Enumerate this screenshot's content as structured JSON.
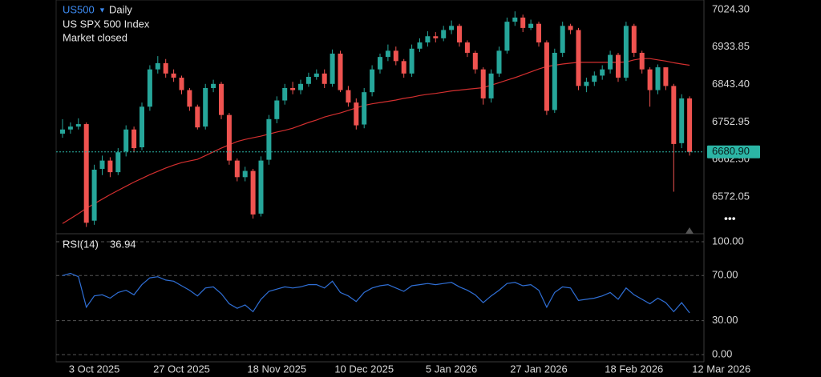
{
  "chart_data": {
    "type": "candlestick",
    "symbol": "US500",
    "interval": "Daily",
    "name": "US SPX 500 Index",
    "status": "Market closed",
    "categories": [
      null,
      null,
      null,
      null,
      "3 Oct 2025",
      null,
      null,
      null,
      null,
      null,
      null,
      null,
      null,
      null,
      null,
      "27 Oct 2025",
      null,
      null,
      null,
      null,
      null,
      null,
      null,
      null,
      null,
      null,
      null,
      "18 Nov 2025",
      null,
      null,
      null,
      null,
      null,
      null,
      null,
      null,
      null,
      null,
      "10 Dec 2025",
      null,
      null,
      null,
      null,
      null,
      null,
      null,
      null,
      null,
      null,
      "5 Jan 2026",
      null,
      null,
      null,
      null,
      null,
      null,
      null,
      null,
      null,
      null,
      "27 Jan 2026",
      null,
      null,
      null,
      null,
      null,
      null,
      null,
      null,
      null,
      null,
      null,
      "18 Feb 2026",
      null,
      null,
      null,
      null,
      null,
      null,
      null,
      null,
      null,
      null,
      "12 Mar 2026"
    ],
    "open": [
      6725,
      6735,
      6742,
      6748,
      6515,
      6640,
      6660,
      6632,
      6682,
      6735,
      6692,
      6790,
      6880,
      6895,
      6870,
      6860,
      6830,
      6790,
      6742,
      6835,
      6845,
      6770,
      6660,
      6620,
      6635,
      6532,
      6662,
      6760,
      6805,
      6835,
      6830,
      6845,
      6862,
      6870,
      6845,
      6918,
      6830,
      6800,
      6747,
      6825,
      6880,
      6910,
      6925,
      6900,
      6870,
      6930,
      6945,
      6960,
      6955,
      6975,
      6985,
      6945,
      6920,
      6880,
      6810,
      6870,
      6925,
      6995,
      7005,
      6980,
      6990,
      6945,
      6782,
      6920,
      6985,
      6975,
      6840,
      6850,
      6865,
      6880,
      6915,
      6860,
      6985,
      6920,
      6880,
      6830,
      6885,
      6840,
      6702,
      6810,
      null,
      null,
      null,
      null
    ],
    "high": [
      6760,
      6752,
      6762,
      6752,
      6650,
      6672,
      6668,
      6690,
      6745,
      6742,
      6800,
      6890,
      6912,
      6905,
      6880,
      6865,
      6835,
      6795,
      6845,
      6855,
      6850,
      6775,
      6665,
      6645,
      6640,
      6670,
      6770,
      6815,
      6845,
      6850,
      6855,
      6872,
      6880,
      6880,
      6928,
      6925,
      6840,
      6810,
      6835,
      6890,
      6918,
      6940,
      6935,
      6905,
      6940,
      6955,
      6972,
      6970,
      6985,
      6998,
      6990,
      6950,
      6925,
      6885,
      6880,
      6935,
      7005,
      7020,
      7012,
      7000,
      6995,
      6950,
      6930,
      6995,
      6990,
      6980,
      6860,
      6875,
      6890,
      6925,
      6920,
      6995,
      6990,
      6925,
      6885,
      6892,
      6885,
      6845,
      6820,
      6815,
      null,
      null,
      null,
      null
    ],
    "low": [
      6715,
      6725,
      6735,
      6500,
      6505,
      6625,
      6620,
      6625,
      6670,
      6680,
      6685,
      6780,
      6870,
      6860,
      6850,
      6820,
      6780,
      6735,
      6735,
      6825,
      6760,
      6650,
      6610,
      6610,
      6520,
      6525,
      6650,
      6750,
      6795,
      6820,
      6820,
      6838,
      6855,
      6835,
      6838,
      6825,
      6790,
      6735,
      6738,
      6815,
      6870,
      6900,
      6890,
      6860,
      6862,
      6922,
      6935,
      6945,
      6948,
      6965,
      6935,
      6910,
      6870,
      6795,
      6800,
      6862,
      6918,
      6985,
      6970,
      6975,
      6935,
      6770,
      6775,
      6910,
      6965,
      6830,
      6825,
      6840,
      6855,
      6870,
      6850,
      6852,
      6910,
      6870,
      6790,
      6820,
      6830,
      6585,
      6690,
      6672,
      null,
      null,
      null,
      null
    ],
    "close": [
      6735,
      6742,
      6748,
      6510,
      6638,
      6660,
      6632,
      6680,
      6735,
      6690,
      6790,
      6880,
      6895,
      6870,
      6860,
      6830,
      6790,
      6740,
      6835,
      6845,
      6770,
      6660,
      6620,
      6635,
      6530,
      6660,
      6760,
      6805,
      6835,
      6830,
      6845,
      6862,
      6870,
      6845,
      6918,
      6830,
      6800,
      6745,
      6825,
      6880,
      6910,
      6925,
      6900,
      6870,
      6930,
      6945,
      6960,
      6955,
      6975,
      6985,
      6945,
      6920,
      6880,
      6810,
      6870,
      6925,
      6995,
      7005,
      6980,
      6990,
      6945,
      6780,
      6920,
      6985,
      6975,
      6840,
      6850,
      6865,
      6880,
      6915,
      6860,
      6985,
      6920,
      6880,
      6830,
      6885,
      6840,
      6700,
      6810,
      6680.9,
      null,
      null,
      null,
      null
    ],
    "up_color": "#26a69a",
    "down_color": "#ef5350",
    "ylim": [
      6483.5,
      7047.4
    ],
    "yticks": [
      {
        "value": 7024.3,
        "label": "7024.30"
      },
      6933.85,
      {
        "value": 6843.4,
        "label": "6843.40"
      },
      6752.95,
      {
        "value": 6662.5,
        "label": "6662.50"
      },
      6572.05
    ],
    "last_price": {
      "value": 6680.9,
      "label": "6680.90"
    },
    "ma": {
      "color": "#d32f2f",
      "values": [
        6508,
        6520,
        6532,
        6545,
        6556,
        6567,
        6578,
        6588,
        6598,
        6608,
        6617,
        6626,
        6634,
        6642,
        6649,
        6655,
        6659,
        6663,
        6672,
        6681,
        6690,
        6698,
        6706,
        6711,
        6715,
        6719,
        6724,
        6729,
        6733,
        6738,
        6745,
        6752,
        6758,
        6765,
        6770,
        6775,
        6781,
        6787,
        6793,
        6797,
        6800,
        6803,
        6806,
        6810,
        6813,
        6817,
        6820,
        6822,
        6825,
        6828,
        6830,
        6832,
        6834,
        6836,
        6842,
        6848,
        6854,
        6860,
        6867,
        6874,
        6881,
        6887,
        6890,
        6893,
        6895,
        6897,
        6897,
        6897,
        6897,
        6897,
        6897,
        6898,
        6903,
        6906,
        6906,
        6903,
        6900,
        6896,
        6893,
        6890,
        null,
        null,
        null,
        null
      ]
    },
    "rsi": {
      "name": "RSI(14)",
      "color": "#2f6fd6",
      "values": [
        70,
        72,
        69,
        42,
        52,
        53,
        50,
        55,
        57,
        53,
        62,
        68,
        69,
        66,
        65,
        61,
        57,
        52,
        59,
        60,
        54,
        45,
        41,
        44,
        38,
        49,
        56,
        58,
        60,
        59,
        60,
        62,
        62,
        59,
        65,
        55,
        52,
        47,
        55,
        59,
        61,
        62,
        59,
        56,
        61,
        62,
        63,
        62,
        63,
        64,
        60,
        57,
        53,
        46,
        52,
        57,
        63,
        64,
        61,
        62,
        57,
        42,
        55,
        60,
        59,
        48,
        49,
        50,
        52,
        55,
        49,
        59,
        53,
        49,
        45,
        50,
        46,
        38,
        46,
        36.94,
        null,
        null,
        null,
        null
      ],
      "ylim": [
        -6.4,
        107.1
      ],
      "yticks": [
        {
          "value": 100,
          "label": "100.00"
        },
        {
          "value": 70,
          "label": "70.00"
        },
        {
          "value": 30,
          "label": "30.00"
        },
        {
          "value": 0,
          "label": "0.00"
        }
      ]
    }
  }
}
